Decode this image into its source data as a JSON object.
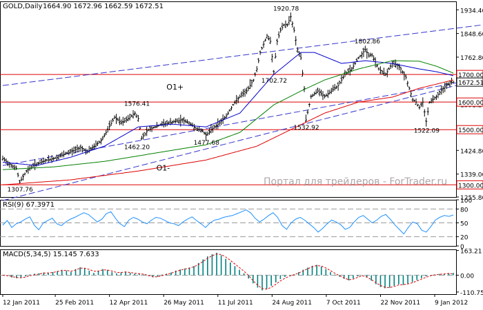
{
  "header": {
    "symbol": "GOLD,Daily",
    "ohlc": "1664.90 1672.96 1662.59 1672.51"
  },
  "watermark": "Портал для трейдеров - ForTrader.ru",
  "colors": {
    "price_bars": "#000000",
    "ma_blue": "#0000cc",
    "ma_green": "#008000",
    "ma_red": "#dd0000",
    "hline": "#dd0000",
    "channel": "#3333cc",
    "rsi": "#1e90ff",
    "macd_hist": "#008080",
    "macd_signal": "#dd0000",
    "watermark": "#b0a8a8",
    "price_tag_bg": "#ffffff"
  },
  "x_axis": {
    "labels": [
      "12 Jan 2011",
      "25 Feb 2011",
      "12 Apr 2011",
      "26 May 2011",
      "11 Jul 2011",
      "24 Aug 2011",
      "7 Oct 2011",
      "22 Nov 2011",
      "9 Jan 2012"
    ],
    "label_bars": [
      0,
      31,
      63,
      95,
      127,
      159,
      191,
      223,
      255
    ]
  },
  "chart_data": [
    {
      "type": "ohlc",
      "title": "GOLD,Daily",
      "ylim": [
        1255.8,
        1965
      ],
      "y_ticks": [
        1934.4,
        1848.6,
        1762.8,
        1677.0,
        1591.2,
        1505.4,
        1424.8,
        1339.0,
        1255.8
      ],
      "price_tags": [
        {
          "value": 1700.0,
          "label": "1700.00",
          "style": "line"
        },
        {
          "value": 1672.51,
          "label": "1672.51",
          "style": "current"
        },
        {
          "value": 1600.0,
          "label": "1600.00",
          "style": "line"
        },
        {
          "value": 1500.0,
          "label": "1500.00",
          "style": "line"
        },
        {
          "value": 1300.0,
          "label": "1300.00",
          "style": "line"
        }
      ],
      "horizontal_levels": [
        1700,
        1600,
        1500,
        1300
      ],
      "annotations": [
        {
          "text": "1920.78",
          "bar": 167,
          "value": 1920.78
        },
        {
          "text": "1802.86",
          "bar": 215,
          "value": 1802.86
        },
        {
          "text": "1702.72",
          "bar": 160,
          "value": 1702.72
        },
        {
          "text": "1576.41",
          "bar": 79,
          "value": 1576.41
        },
        {
          "text": "1462.20",
          "bar": 79,
          "value": 1462.2
        },
        {
          "text": "1477.68",
          "bar": 120,
          "value": 1477.68
        },
        {
          "text": "1532.92",
          "bar": 179,
          "value": 1532.92
        },
        {
          "text": "1522.09",
          "bar": 250,
          "value": 1522.09
        },
        {
          "text": "1307.76",
          "bar": 10,
          "value": 1307.76
        },
        {
          "text": "O1+",
          "bar": 104,
          "value": 1635
        },
        {
          "text": "O1-",
          "bar": 98,
          "value": 1385
        }
      ],
      "channel_lines": [
        {
          "x1": 0,
          "y1": 1660,
          "x2": 322,
          "y2": 1910
        },
        {
          "x1": 0,
          "y1": 1370,
          "x2": 322,
          "y2": 1730
        },
        {
          "x1": 0,
          "y1": 1243,
          "x2": 322,
          "y2": 1745
        }
      ],
      "price_path": [
        [
          0,
          1395
        ],
        [
          4,
          1375
        ],
        [
          8,
          1360
        ],
        [
          10,
          1310
        ],
        [
          14,
          1350
        ],
        [
          18,
          1370
        ],
        [
          22,
          1380
        ],
        [
          26,
          1390
        ],
        [
          30,
          1395
        ],
        [
          34,
          1405
        ],
        [
          38,
          1415
        ],
        [
          42,
          1425
        ],
        [
          46,
          1435
        ],
        [
          50,
          1420
        ],
        [
          54,
          1440
        ],
        [
          58,
          1460
        ],
        [
          62,
          1500
        ],
        [
          66,
          1545
        ],
        [
          70,
          1525
        ],
        [
          74,
          1540
        ],
        [
          78,
          1560
        ],
        [
          80,
          1540
        ],
        [
          82,
          1470
        ],
        [
          86,
          1500
        ],
        [
          90,
          1510
        ],
        [
          94,
          1520
        ],
        [
          98,
          1525
        ],
        [
          102,
          1530
        ],
        [
          106,
          1535
        ],
        [
          110,
          1525
        ],
        [
          114,
          1505
        ],
        [
          118,
          1495
        ],
        [
          120,
          1480
        ],
        [
          124,
          1505
        ],
        [
          128,
          1525
        ],
        [
          132,
          1550
        ],
        [
          136,
          1590
        ],
        [
          140,
          1620
        ],
        [
          144,
          1640
        ],
        [
          148,
          1680
        ],
        [
          150,
          1720
        ],
        [
          152,
          1780
        ],
        [
          156,
          1840
        ],
        [
          158,
          1820
        ],
        [
          160,
          1710
        ],
        [
          162,
          1820
        ],
        [
          164,
          1860
        ],
        [
          166,
          1880
        ],
        [
          168,
          1880
        ],
        [
          170,
          1910
        ],
        [
          172,
          1860
        ],
        [
          174,
          1790
        ],
        [
          176,
          1760
        ],
        [
          178,
          1650
        ],
        [
          179,
          1535
        ],
        [
          182,
          1620
        ],
        [
          186,
          1640
        ],
        [
          190,
          1620
        ],
        [
          194,
          1640
        ],
        [
          198,
          1660
        ],
        [
          202,
          1700
        ],
        [
          206,
          1720
        ],
        [
          210,
          1760
        ],
        [
          214,
          1790
        ],
        [
          216,
          1770
        ],
        [
          218,
          1770
        ],
        [
          222,
          1720
        ],
        [
          226,
          1700
        ],
        [
          230,
          1740
        ],
        [
          234,
          1730
        ],
        [
          238,
          1690
        ],
        [
          240,
          1650
        ],
        [
          242,
          1610
        ],
        [
          244,
          1600
        ],
        [
          246,
          1580
        ],
        [
          248,
          1600
        ],
        [
          250,
          1530
        ],
        [
          252,
          1600
        ],
        [
          256,
          1620
        ],
        [
          260,
          1650
        ],
        [
          264,
          1670
        ],
        [
          266,
          1672.51
        ]
      ],
      "ma_blue": [
        [
          0,
          1382
        ],
        [
          20,
          1370
        ],
        [
          40,
          1400
        ],
        [
          60,
          1440
        ],
        [
          80,
          1510
        ],
        [
          100,
          1520
        ],
        [
          120,
          1510
        ],
        [
          140,
          1560
        ],
        [
          160,
          1700
        ],
        [
          176,
          1780
        ],
        [
          184,
          1780
        ],
        [
          200,
          1740
        ],
        [
          214,
          1750
        ],
        [
          230,
          1740
        ],
        [
          246,
          1720
        ],
        [
          256,
          1710
        ],
        [
          266,
          1696
        ]
      ],
      "ma_green": [
        [
          0,
          1355
        ],
        [
          30,
          1365
        ],
        [
          60,
          1385
        ],
        [
          90,
          1415
        ],
        [
          120,
          1445
        ],
        [
          140,
          1490
        ],
        [
          160,
          1590
        ],
        [
          176,
          1640
        ],
        [
          190,
          1680
        ],
        [
          210,
          1720
        ],
        [
          230,
          1750
        ],
        [
          246,
          1748
        ],
        [
          256,
          1730
        ],
        [
          266,
          1705
        ]
      ],
      "ma_red": [
        [
          0,
          1300
        ],
        [
          40,
          1318
        ],
        [
          80,
          1350
        ],
        [
          120,
          1390
        ],
        [
          150,
          1440
        ],
        [
          170,
          1500
        ],
        [
          190,
          1560
        ],
        [
          210,
          1600
        ],
        [
          230,
          1618
        ],
        [
          246,
          1650
        ],
        [
          266,
          1680
        ]
      ]
    },
    {
      "type": "line",
      "title": "RSI(9) 67.3971",
      "ylim": [
        0,
        100
      ],
      "y_ticks": [
        100,
        80,
        50,
        20,
        0
      ],
      "levels": [
        80,
        50,
        20
      ],
      "series": [
        {
          "name": "RSI(9)",
          "values": [
            45,
            55,
            40,
            48,
            52,
            58,
            63,
            45,
            35,
            50,
            55,
            60,
            48,
            44,
            52,
            58,
            62,
            67,
            72,
            68,
            60,
            52,
            58,
            70,
            74,
            60,
            48,
            42,
            56,
            62,
            58,
            52,
            48,
            56,
            62,
            60,
            55,
            50,
            48,
            44,
            52,
            58,
            63,
            55,
            48,
            40,
            50,
            56,
            58,
            62,
            64,
            66,
            70,
            74,
            78,
            72,
            60,
            52,
            58,
            66,
            72,
            62,
            44,
            36,
            50,
            58,
            62,
            56,
            48,
            40,
            30,
            38,
            48,
            56,
            52,
            46,
            36,
            40,
            52,
            62,
            66,
            58,
            50,
            56,
            64,
            68,
            58,
            46,
            36,
            26,
            40,
            52,
            48,
            34,
            30,
            42,
            56,
            62,
            66,
            64,
            67
          ]
        }
      ]
    },
    {
      "type": "bar",
      "title": "MACD(5,34,5) 15.145 7.633",
      "ylim": [
        -125,
        170
      ],
      "y_ticks": [
        163.21,
        0.0,
        -110.75
      ],
      "series": [
        {
          "name": "MACD",
          "values": [
            0,
            -6,
            -15,
            -20,
            -18,
            -8,
            5,
            10,
            12,
            18,
            14,
            20,
            28,
            35,
            30,
            22,
            40,
            52,
            46,
            30,
            15,
            28,
            40,
            34,
            22,
            12,
            18,
            24,
            16,
            10,
            8,
            4,
            -6,
            -14,
            -10,
            4,
            10,
            18,
            30,
            38,
            44,
            50,
            60,
            80,
            104,
            124,
            138,
            148,
            132,
            108,
            84,
            60,
            36,
            12,
            -22,
            -54,
            -82,
            -100,
            -90,
            -70,
            -48,
            -26,
            -12,
            0,
            6,
            20,
            36,
            50,
            62,
            68,
            56,
            40,
            20,
            4,
            -10,
            -24,
            -34,
            -22,
            -8,
            0,
            -16,
            -36,
            -60,
            -78,
            -86,
            -82,
            -70,
            -60,
            -64,
            -56,
            -46,
            -32,
            -20,
            -8,
            0,
            4,
            8,
            10,
            14,
            15.145
          ]
        },
        {
          "name": "Signal",
          "values": [
            0,
            -3,
            -9,
            -15,
            -17,
            -13,
            -4,
            3,
            8,
            14,
            15,
            18,
            24,
            31,
            32,
            26,
            34,
            46,
            46,
            38,
            26,
            27,
            35,
            34,
            28,
            18,
            18,
            21,
            18,
            13,
            10,
            6,
            -2,
            -10,
            -11,
            -3,
            5,
            13,
            24,
            33,
            40,
            46,
            55,
            70,
            90,
            112,
            128,
            140,
            136,
            120,
            98,
            74,
            50,
            26,
            -2,
            -36,
            -66,
            -88,
            -92,
            -80,
            -60,
            -38,
            -20,
            -6,
            2,
            14,
            28,
            42,
            55,
            64,
            60,
            48,
            30,
            12,
            -4,
            -18,
            -30,
            -26,
            -14,
            -4,
            -12,
            -30,
            -50,
            -68,
            -80,
            -82,
            -74,
            -64,
            -63,
            -58,
            -50,
            -38,
            -26,
            -14,
            -4,
            2,
            6,
            8,
            11,
            7.633
          ]
        }
      ]
    }
  ]
}
